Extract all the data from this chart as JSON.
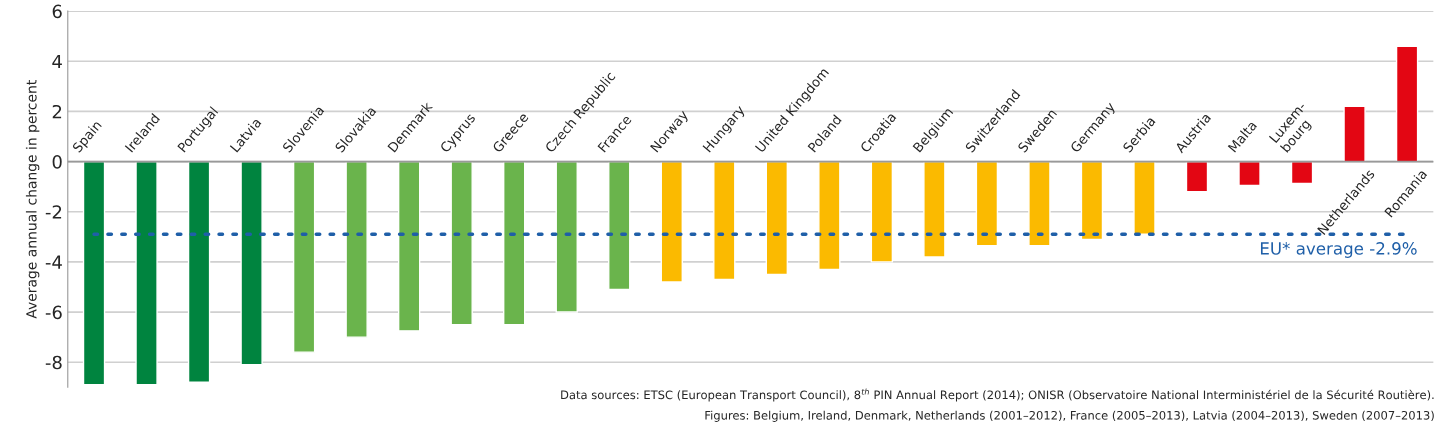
{
  "chart_data": {
    "type": "bar",
    "ylabel": "Average annual change in percent",
    "categories": [
      "Spain",
      "Ireland",
      "Portugal",
      "Latvia",
      "Slovenia",
      "Slovakia",
      "Denmark",
      "Cyprus",
      "Greece",
      "Czech Republic",
      "France",
      "Norway",
      "Hungary",
      "United Kingdom",
      "Poland",
      "Croatia",
      "Belgium",
      "Switzerland",
      "Sweden",
      "Germany",
      "Serbia",
      "Austria",
      "Malta",
      "Luxem-\nbourg",
      "Netherlands",
      "Romania"
    ],
    "values": [
      -8.9,
      -8.9,
      -8.8,
      -8.1,
      -7.6,
      -7.0,
      -6.75,
      -6.5,
      -6.5,
      -6.0,
      -5.1,
      -4.8,
      -4.7,
      -4.5,
      -4.3,
      -4.0,
      -3.8,
      -3.35,
      -3.35,
      -3.1,
      -2.9,
      -1.2,
      -0.95,
      -0.87,
      2.2,
      4.6
    ],
    "colors": [
      "#00843f",
      "#00843f",
      "#00843f",
      "#00843f",
      "#6ab44c",
      "#6ab44c",
      "#6ab44c",
      "#6ab44c",
      "#6ab44c",
      "#6ab44c",
      "#6ab44c",
      "#fbba00",
      "#fbba00",
      "#fbba00",
      "#fbba00",
      "#fbba00",
      "#fbba00",
      "#fbba00",
      "#fbba00",
      "#fbba00",
      "#fbba00",
      "#e30613",
      "#e30613",
      "#e30613",
      "#e30613",
      "#e30613"
    ],
    "ylim": [
      -9,
      6
    ],
    "yticks": [
      -8,
      -6,
      -4,
      -2,
      0,
      2,
      4,
      6
    ],
    "grid": "y",
    "ref_lines": [
      {
        "axis": "y",
        "value": -2.9,
        "label": "EU* average -2.9%",
        "color": "#1f5fa8",
        "line_style": "dotted"
      }
    ],
    "annotations": [
      "Data sources: ETSC (European Transport Council), 8$^{th}$ PIN Annual Report (2014); ONISR (Observatoire National Interministériel de la Sécurité Routière).",
      "Figures: Belgium, Ireland, Denmark, Netherlands (2001–2012), France (2005–2013), Latvia (2004–2013), Sweden (2007–2013)"
    ]
  }
}
